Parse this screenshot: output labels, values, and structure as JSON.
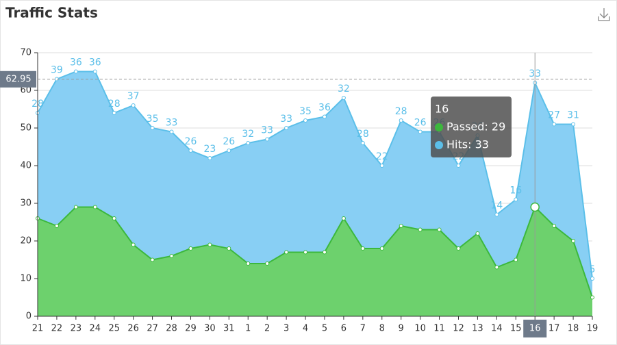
{
  "chart_data": {
    "type": "stacked-area",
    "title": "Traffic Stats",
    "categories": [
      "21",
      "22",
      "23",
      "24",
      "25",
      "26",
      "27",
      "28",
      "29",
      "30",
      "31",
      "1",
      "2",
      "3",
      "4",
      "5",
      "6",
      "7",
      "8",
      "9",
      "10",
      "11",
      "12",
      "13",
      "14",
      "15",
      "16",
      "17",
      "18",
      "19"
    ],
    "series": [
      {
        "color": "#3cb83c",
        "fill": "#6dd16d",
        "values": [
          26,
          24,
          29,
          29,
          26,
          19,
          15,
          16,
          18,
          19,
          18,
          14,
          14,
          17,
          17,
          17,
          26,
          18,
          18,
          24,
          23,
          23,
          18,
          22,
          13,
          15,
          29,
          24,
          20,
          5
        ]
      },
      {
        "color": "#5bbfe9",
        "fill": "#88cff4",
        "values": [
          28,
          39,
          36,
          36,
          28,
          37,
          35,
          33,
          26,
          23,
          26,
          32,
          33,
          33,
          35,
          36,
          32,
          28,
          22,
          28,
          26,
          26,
          22,
          26,
          14,
          16,
          33,
          27,
          31,
          5
        ]
      }
    ],
    "ylim": [
      0,
      70
    ],
    "yticks": [
      0,
      10,
      20,
      30,
      40,
      50,
      60,
      70
    ],
    "grid": true,
    "axis_pointer": {
      "category_index": 26,
      "y": 62.95
    },
    "tooltip": {
      "title": "16",
      "items": [
        "Passed: 29",
        "Hits: 33"
      ]
    }
  }
}
